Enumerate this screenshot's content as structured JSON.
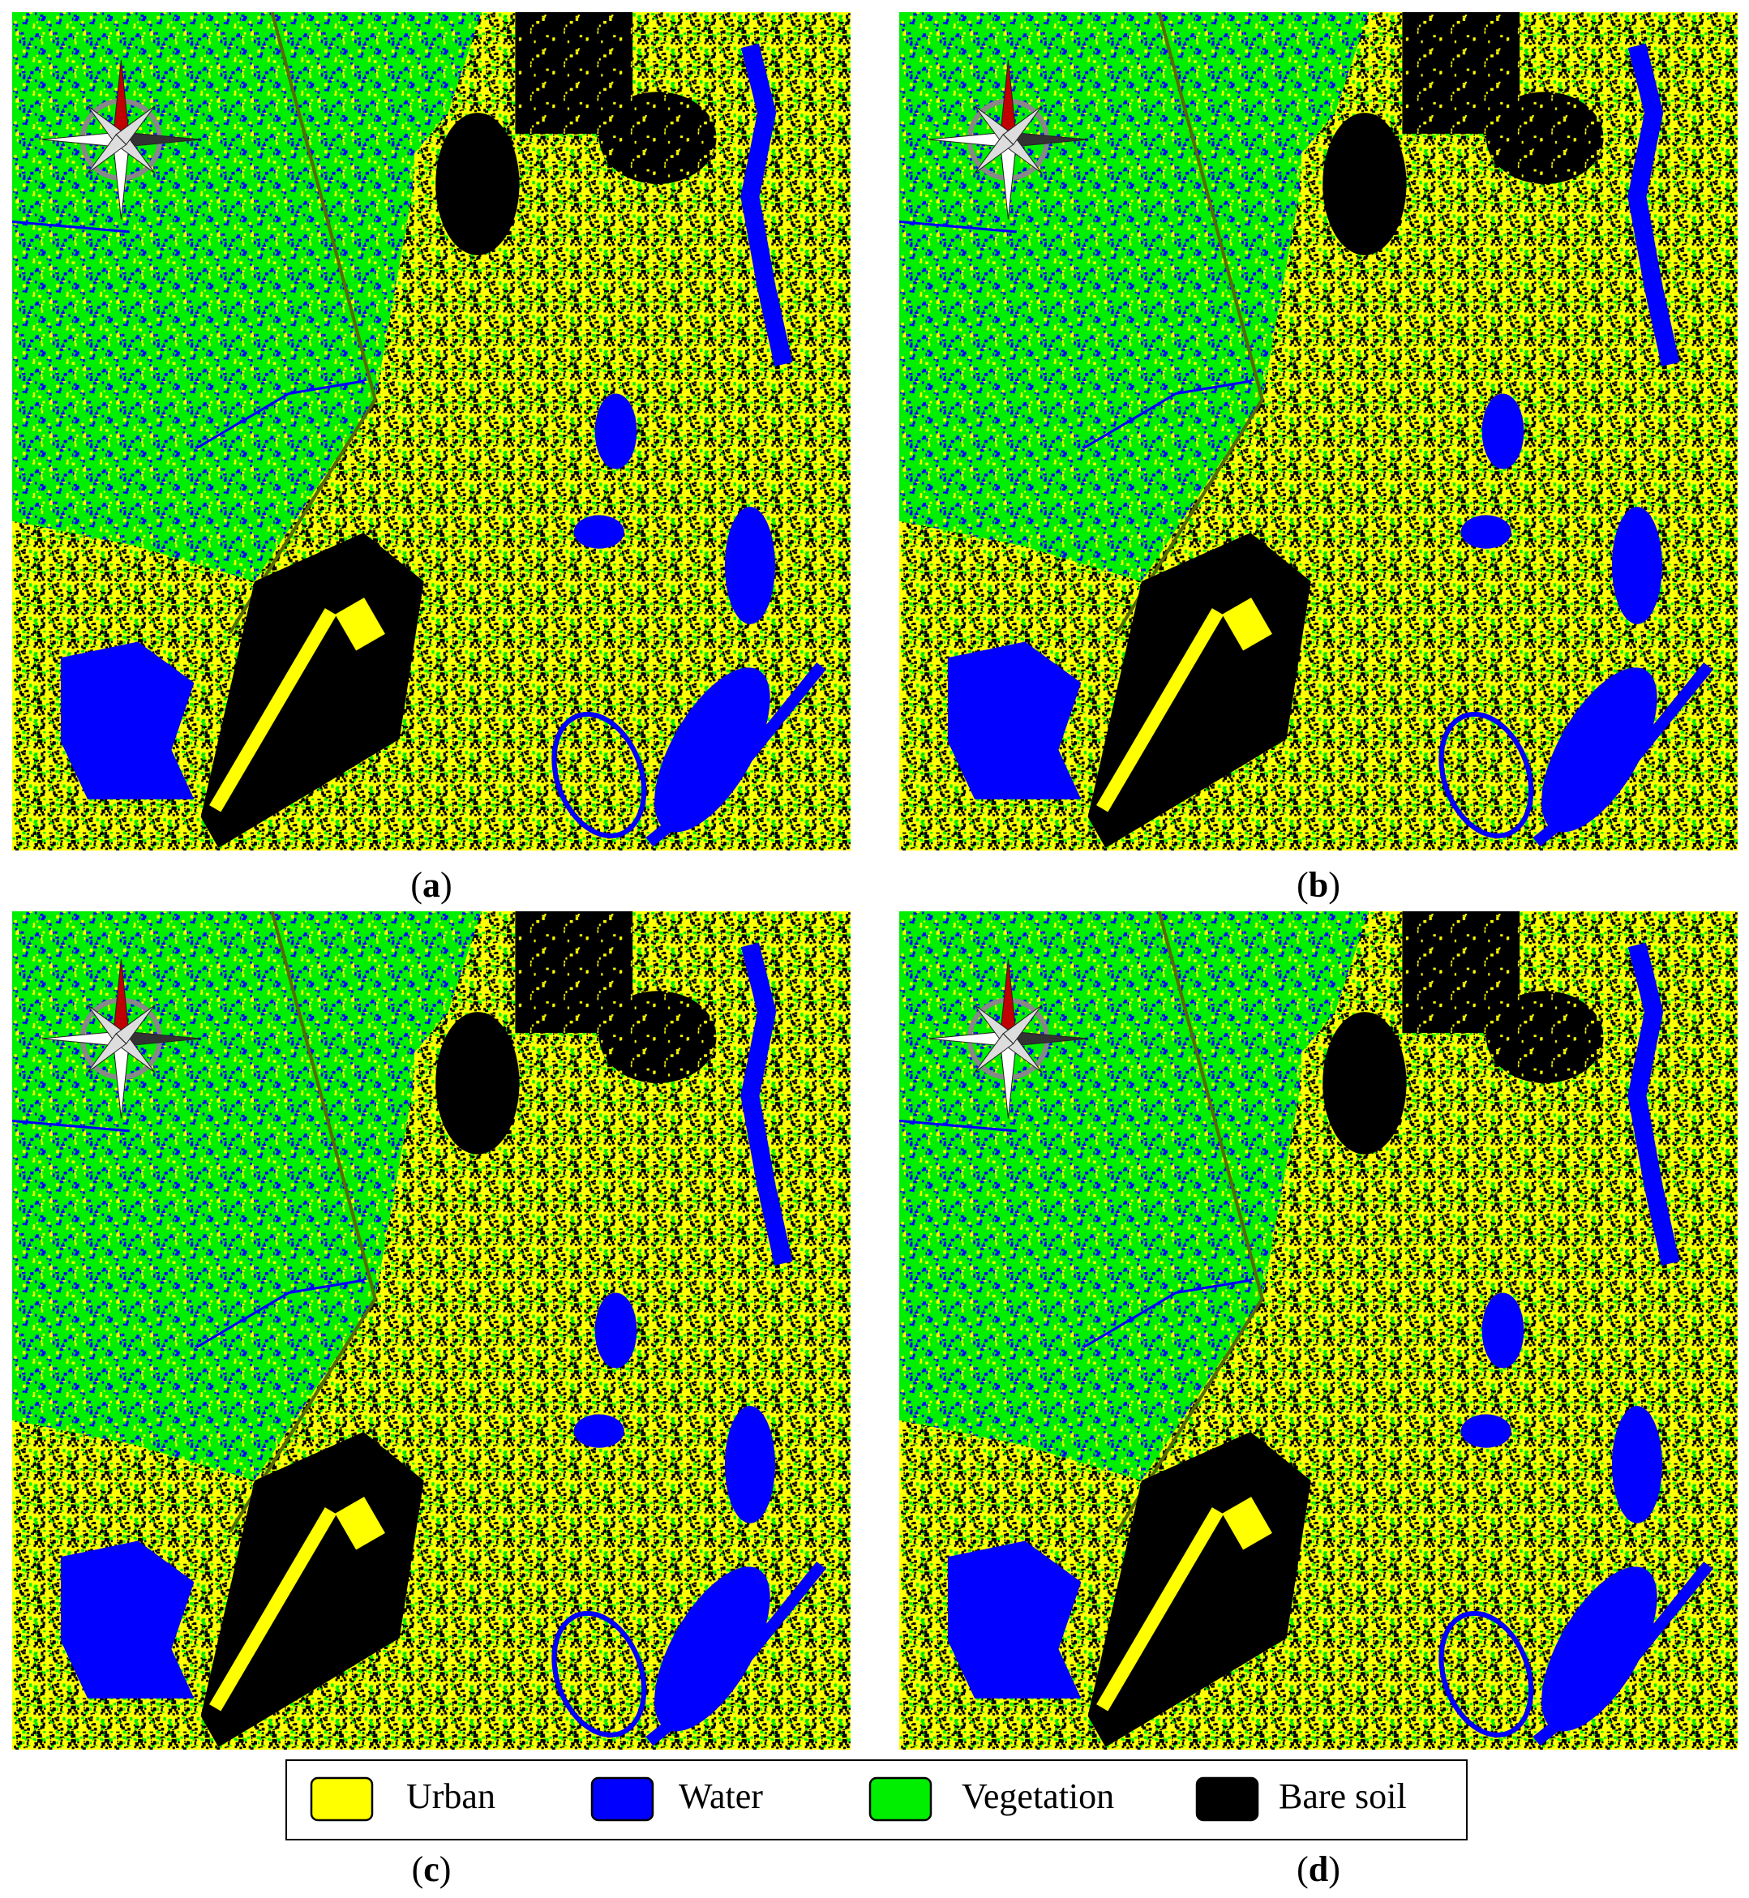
{
  "panels": [
    {
      "label": "(a)"
    },
    {
      "label": "(b)"
    },
    {
      "label": "(c)"
    },
    {
      "label": "(d)"
    }
  ],
  "legend": {
    "items": [
      {
        "label": "Urban",
        "color": "#ffff00"
      },
      {
        "label": "Water",
        "color": "#0000ff"
      },
      {
        "label": "Vegetation",
        "color": "#00ee00"
      },
      {
        "label": "Bare soil",
        "color": "#000000"
      }
    ]
  }
}
